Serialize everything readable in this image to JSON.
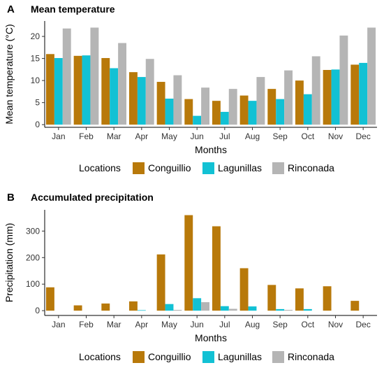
{
  "colors": {
    "Conguillio": "#b8790a",
    "Lagunillas": "#12c1d4",
    "Rinconada": "#b5b5b5"
  },
  "chart_data": [
    {
      "panel": "A",
      "type": "bar",
      "title": "Mean temperature",
      "xlabel": "Months",
      "ylabel": "Mean temperature (°C)",
      "ylim": [
        -0.6,
        23.5
      ],
      "yticks": [
        0,
        5,
        10,
        15,
        20
      ],
      "grid": false,
      "legend_position": "bottom",
      "legend_title": "Locations",
      "categories": [
        "Jan",
        "Feb",
        "Mar",
        "Apr",
        "May",
        "Jun",
        "Jul",
        "Aug",
        "Sep",
        "Oct",
        "Nov",
        "Dec"
      ],
      "series": [
        {
          "name": "Conguillio",
          "values": [
            16.0,
            15.6,
            15.1,
            11.9,
            9.7,
            5.8,
            5.4,
            6.6,
            8.1,
            10.0,
            12.4,
            13.6
          ]
        },
        {
          "name": "Lagunillas",
          "values": [
            15.1,
            15.7,
            12.8,
            10.8,
            5.9,
            2.0,
            2.9,
            5.4,
            5.8,
            6.9,
            12.5,
            14.0
          ]
        },
        {
          "name": "Rinconada",
          "values": [
            21.8,
            22.0,
            18.5,
            14.9,
            11.2,
            8.4,
            8.1,
            10.8,
            12.3,
            15.5,
            20.2,
            22.0
          ]
        }
      ]
    },
    {
      "panel": "B",
      "type": "bar",
      "title": "Accumulated precipitation",
      "xlabel": "Months",
      "ylabel": "Precipitation (mm)",
      "ylim": [
        -18,
        380
      ],
      "yticks": [
        0,
        100,
        200,
        300
      ],
      "grid": false,
      "legend_position": "bottom",
      "legend_title": "Locations",
      "categories": [
        "Jan",
        "Feb",
        "Mar",
        "Apr",
        "May",
        "Jun",
        "Jul",
        "Aug",
        "Sep",
        "Oct",
        "Nov",
        "Dec"
      ],
      "series": [
        {
          "name": "Conguillio",
          "values": [
            88,
            20,
            27,
            35,
            212,
            360,
            318,
            160,
            97,
            84,
            92,
            37
          ]
        },
        {
          "name": "Lagunillas",
          "values": [
            0,
            0,
            0,
            2,
            25,
            47,
            17,
            16,
            6,
            6,
            0,
            0
          ]
        },
        {
          "name": "Rinconada",
          "values": [
            0,
            0,
            0,
            0,
            3,
            32,
            7,
            0,
            3,
            0,
            0,
            0
          ]
        }
      ]
    }
  ]
}
